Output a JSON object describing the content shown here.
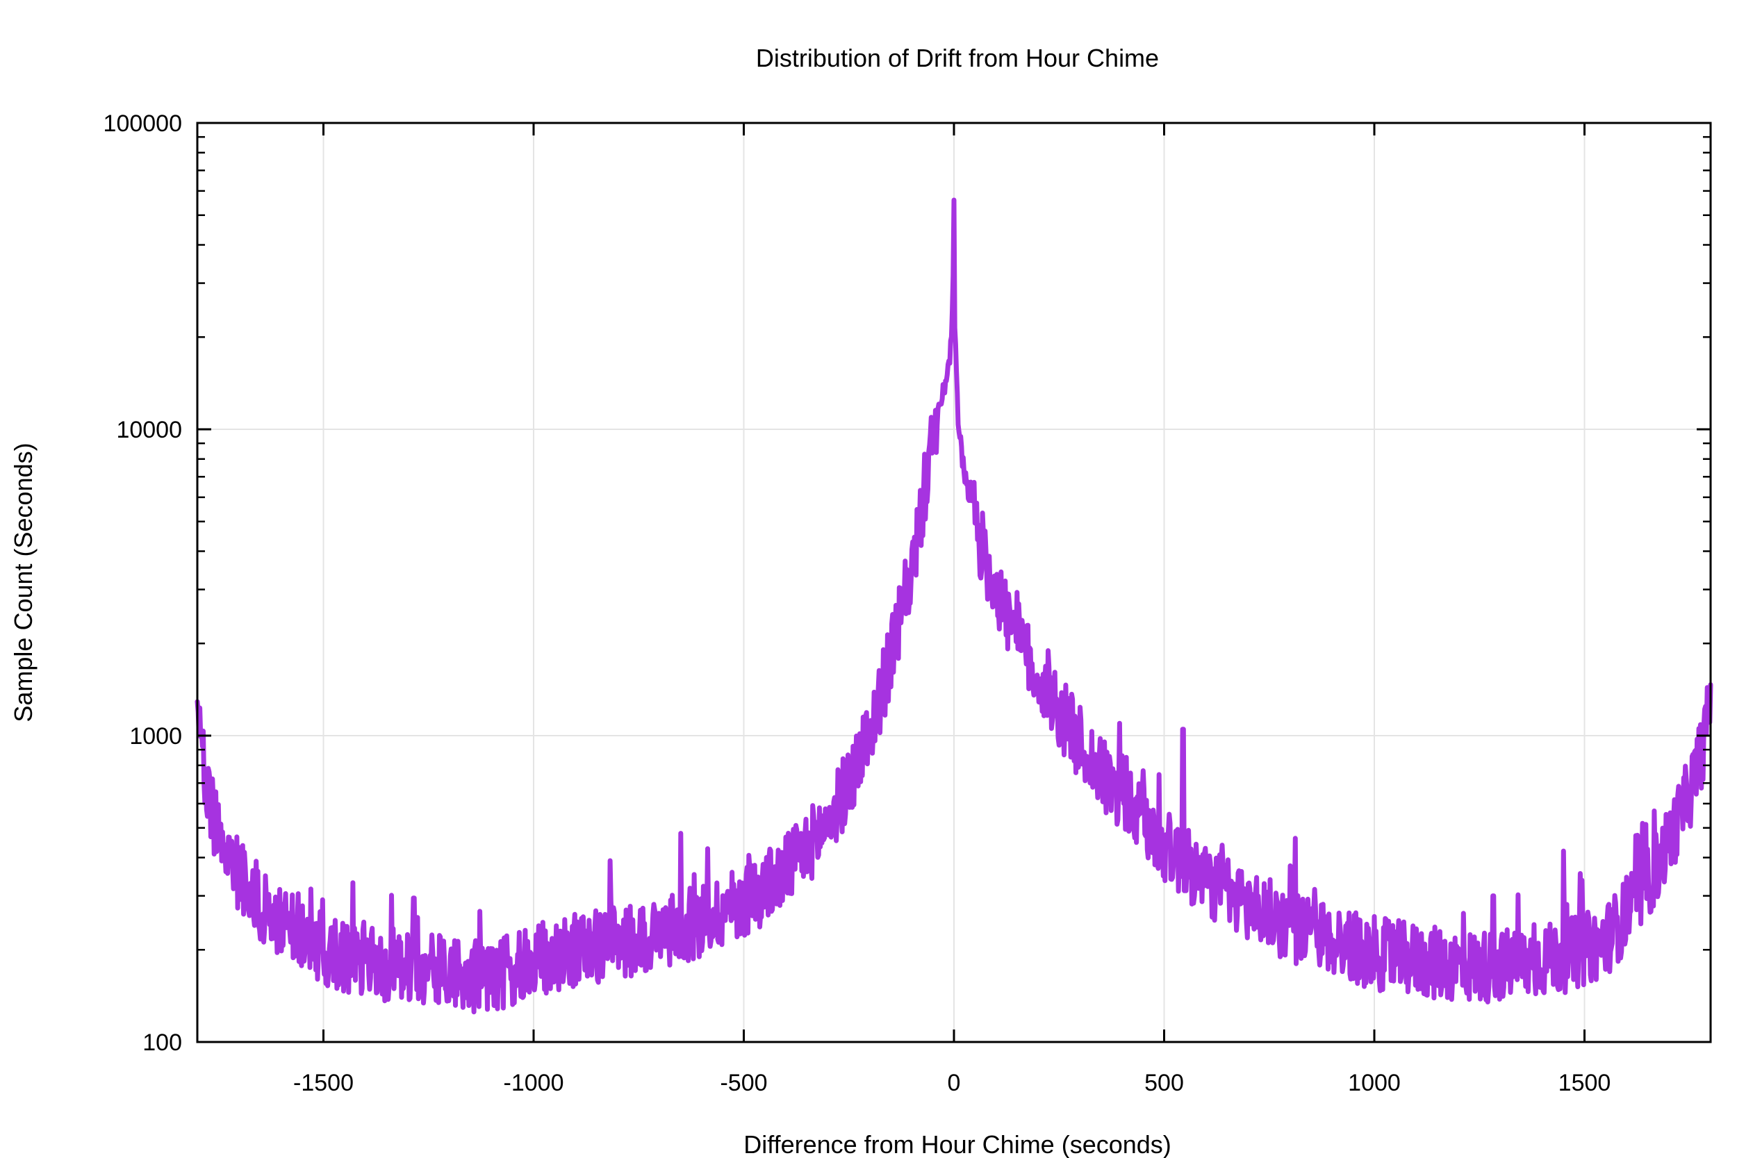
{
  "chart_data": {
    "type": "line",
    "title": "Distribution of Drift from Hour Chime",
    "xlabel": "Difference from Hour Chime (seconds)",
    "ylabel": "Sample Count (Seconds)",
    "xlim": [
      -1800,
      1800
    ],
    "ylim": [
      100,
      100000
    ],
    "y_scale": "log",
    "grid": true,
    "legend": "none",
    "x_ticks": [
      -1500,
      -1000,
      -500,
      0,
      500,
      1000,
      1500
    ],
    "y_ticks": [
      100,
      1000,
      10000,
      100000
    ],
    "series_color": "#a633e0",
    "series": [
      {
        "x": [
          -1800,
          -1790,
          -1775,
          -1750,
          -1725,
          -1700,
          -1675,
          -1650,
          -1625,
          -1600,
          -1575,
          -1550,
          -1500,
          -1450,
          -1400,
          -1350,
          -1300,
          -1250,
          -1200,
          -1150,
          -1100,
          -1050,
          -1000,
          -950,
          -900,
          -850,
          -800,
          -750,
          -700,
          -650,
          -600,
          -550,
          -500,
          -450,
          -400,
          -350,
          -300,
          -275,
          -250,
          -225,
          -200,
          -175,
          -150,
          -125,
          -100,
          -90,
          -80,
          -70,
          -60,
          -50,
          -40,
          -30,
          -20,
          -10,
          -5,
          -2,
          0,
          2,
          5,
          10,
          20,
          30,
          40,
          50,
          60,
          80,
          100,
          125,
          150,
          175,
          200,
          250,
          300,
          350,
          400,
          450,
          500,
          550,
          600,
          650,
          700,
          750,
          800,
          850,
          900,
          950,
          1000,
          1050,
          1100,
          1150,
          1200,
          1250,
          1300,
          1350,
          1400,
          1450,
          1500,
          1550,
          1600,
          1625,
          1650,
          1675,
          1700,
          1725,
          1750,
          1775,
          1790,
          1800
        ],
        "values": [
          1300,
          900,
          600,
          500,
          400,
          350,
          320,
          280,
          260,
          240,
          230,
          220,
          200,
          190,
          180,
          175,
          175,
          170,
          170,
          165,
          165,
          170,
          180,
          190,
          200,
          205,
          210,
          215,
          225,
          235,
          250,
          270,
          290,
          320,
          360,
          430,
          520,
          600,
          700,
          850,
          1050,
          1350,
          1800,
          2500,
          3500,
          4200,
          5100,
          6300,
          7800,
          9500,
          11000,
          12500,
          14000,
          17000,
          21000,
          30000,
          54000,
          22000,
          16000,
          11000,
          8000,
          6500,
          5800,
          5000,
          4400,
          3600,
          3000,
          2500,
          2100,
          1800,
          1550,
          1200,
          950,
          750,
          620,
          520,
          440,
          380,
          340,
          305,
          280,
          260,
          240,
          225,
          215,
          205,
          195,
          190,
          185,
          180,
          178,
          176,
          178,
          180,
          185,
          190,
          200,
          215,
          260,
          290,
          330,
          380,
          450,
          540,
          650,
          850,
          1050,
          1350
        ]
      }
    ],
    "spikes": [
      {
        "x": -1285,
        "y": 295
      },
      {
        "x": -650,
        "y": 480
      },
      {
        "x": 400,
        "y": 860
      },
      {
        "x": 545,
        "y": 1050
      },
      {
        "x": 1283,
        "y": 300
      },
      {
        "x": 1450,
        "y": 420
      }
    ]
  }
}
